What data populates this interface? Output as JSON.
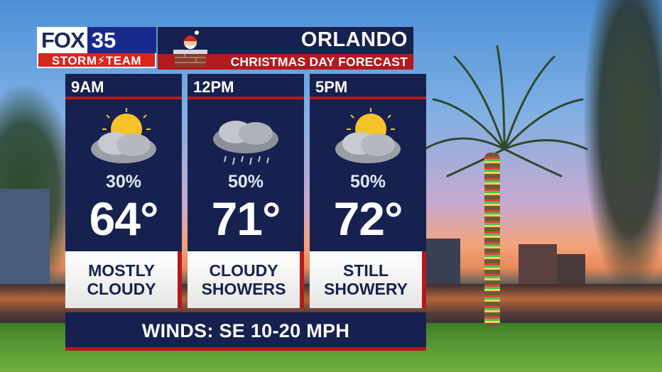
{
  "brand": {
    "fox_word": "FOX",
    "fox_number": "35",
    "storm_team": "STORM⚡TEAM"
  },
  "header": {
    "city": "ORLANDO",
    "subtitle": "CHRISTMAS DAY FORECAST"
  },
  "forecast": [
    {
      "time": "9AM",
      "rain_chance": "30%",
      "temp": "64°",
      "condition_line1": "MOSTLY",
      "condition_line2": "CLOUDY",
      "icon": "partly-cloudy-icon"
    },
    {
      "time": "12PM",
      "rain_chance": "50%",
      "temp": "71°",
      "condition_line1": "CLOUDY",
      "condition_line2": "SHOWERS",
      "icon": "rain-cloud-icon"
    },
    {
      "time": "5PM",
      "rain_chance": "50%",
      "temp": "72°",
      "condition_line1": "STILL",
      "condition_line2": "SHOWERY",
      "icon": "partly-cloudy-icon"
    }
  ],
  "winds": "WINDS: SE 10-20 MPH",
  "colors": {
    "navy": "#16214f",
    "red": "#b3191d",
    "white": "#ffffff"
  }
}
